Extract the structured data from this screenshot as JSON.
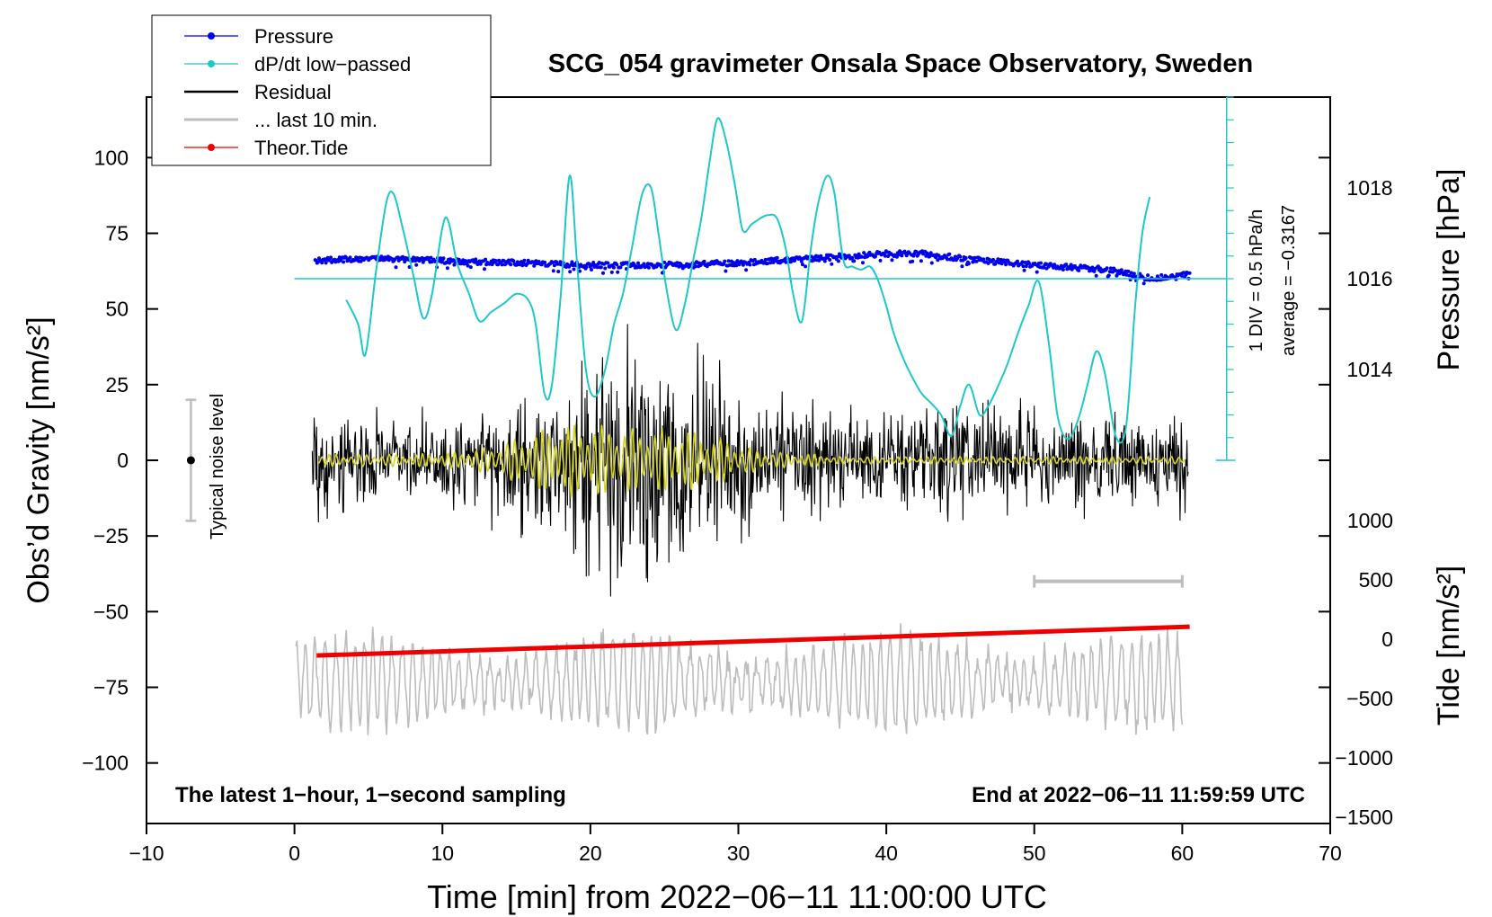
{
  "chart_data": {
    "type": "line",
    "title": "SCG_054 gravimeter Onsala Space Observatory, Sweden",
    "xlabel": "Time [min] from 2022−06−11 11:00:00 UTC",
    "ylabel_left": "Obs’d Gravity [nm/s²]",
    "ylabel_right_top": "Pressure [hPa]",
    "ylabel_right_bottom": "Tide [nm/s²]",
    "xlim": [
      -10,
      70
    ],
    "ylim": [
      -120,
      120
    ],
    "x_ticks": [
      -10,
      0,
      10,
      20,
      30,
      40,
      50,
      60,
      70
    ],
    "x_tick_labels": [
      "−10",
      "0",
      "10",
      "20",
      "30",
      "40",
      "50",
      "60",
      "70"
    ],
    "y_ticks": [
      100,
      75,
      50,
      25,
      0,
      -25,
      -50,
      -75,
      -100
    ],
    "y_tick_labels": [
      "100",
      "75",
      "50",
      "25",
      "0",
      "−25",
      "−50",
      "−75",
      "−100"
    ],
    "pressure_axis": {
      "ticks": [
        1018,
        1016,
        1014
      ],
      "labels": [
        "1018",
        "1016",
        "1014"
      ],
      "range": [
        1012,
        1020
      ]
    },
    "tide_axis": {
      "ticks": [
        1000,
        500,
        0,
        -500,
        -1000,
        -1500
      ],
      "labels": [
        "1000",
        "500",
        "0",
        "−500",
        "−1000",
        "−1500"
      ],
      "range": [
        -1500,
        1500
      ]
    },
    "legend": {
      "placement": "top-left",
      "entries": [
        {
          "label": "Pressure",
          "color": "#0000ee",
          "marker": true
        },
        {
          "label": "dP/dt low−passed",
          "color": "#1fc8c8",
          "marker": true
        },
        {
          "label": "Residual",
          "color": "#000000",
          "marker": false
        },
        {
          "label": "... last 10 min.",
          "color": "#bdbdbd",
          "marker": false
        },
        {
          "label": "Theor.Tide",
          "color": "#ee0000",
          "marker": true
        }
      ]
    },
    "annotations": {
      "noise": "Typical noise level",
      "div": "1 DIV = 0.5 hPa/h",
      "average": "average = −0.3167",
      "bottom_left": "The latest 1−hour, 1−second sampling",
      "bottom_right": "End at 2022−06−11 11:59:59 UTC"
    },
    "noise_bar": {
      "x": -7,
      "center": 0,
      "half_range": 20
    },
    "last10_bar": {
      "x_start": 50,
      "x_end": 60,
      "y": -40
    },
    "dpdt_zero_level": 60,
    "pressure_series": {
      "name": "Pressure",
      "x": [
        1.4,
        5,
        10,
        15,
        20,
        25,
        30,
        35,
        40,
        42.5,
        45,
        50,
        55,
        58,
        60.5
      ],
      "hpa": [
        1016.4,
        1016.45,
        1016.4,
        1016.35,
        1016.3,
        1016.3,
        1016.35,
        1016.45,
        1016.55,
        1016.55,
        1016.45,
        1016.3,
        1016.2,
        1016.0,
        1016.1
      ]
    },
    "dpdt_series": {
      "name": "dP/dt low−passed",
      "x": [
        3.5,
        4.3,
        4.8,
        5.5,
        6.2,
        6.7,
        7.3,
        8,
        8.7,
        9.3,
        10,
        10.4,
        11,
        11.8,
        12.5,
        13.3,
        14.2,
        15,
        15.8,
        16.3,
        16.9,
        17.4,
        18,
        18.6,
        19.1,
        19.7,
        20.3,
        21,
        21.6,
        22.2,
        22.8,
        23.5,
        24.1,
        24.6,
        25.2,
        25.8,
        26.4,
        26.9,
        27.5,
        28.1,
        28.6,
        29.2,
        29.8,
        30.3,
        30.9,
        31.5,
        32,
        32.6,
        33.2,
        33.7,
        34.3,
        34.9,
        35.4,
        36,
        36.5,
        37.1,
        37.7,
        38.3,
        38.9,
        39.4,
        40,
        40.5,
        41.2,
        41.8,
        42.4,
        43,
        43.7,
        44.4,
        45,
        45.6,
        46.3,
        46.9,
        47.6,
        48.2,
        48.9,
        49.6,
        50.3,
        51,
        51.6,
        52.3,
        53,
        53.6,
        54.2,
        54.8,
        55.5,
        56.2,
        56.8,
        57.3,
        57.8
      ],
      "y": [
        53,
        45,
        35,
        62,
        85,
        88,
        77,
        62,
        47,
        55,
        77,
        79,
        65,
        55,
        46,
        49,
        52,
        55,
        53,
        45,
        22,
        25,
        55,
        94,
        65,
        30,
        21,
        30,
        45,
        55,
        70,
        88,
        90,
        75,
        55,
        43,
        52,
        65,
        80,
        100,
        113,
        105,
        90,
        76,
        78,
        80,
        81,
        80,
        70,
        55,
        46,
        70,
        85,
        94,
        88,
        66,
        64,
        63,
        64,
        60,
        51,
        42,
        33,
        27,
        22,
        19,
        15,
        8,
        18,
        25,
        15,
        18,
        25,
        32,
        42,
        51,
        59,
        38,
        14,
        7,
        14,
        25,
        36,
        28,
        8,
        11,
        50,
        75,
        87
      ]
    },
    "tide_series": {
      "name": "Theor.Tide",
      "x": [
        1.5,
        60.5
      ],
      "y": [
        -64.5,
        -55
      ]
    }
  }
}
